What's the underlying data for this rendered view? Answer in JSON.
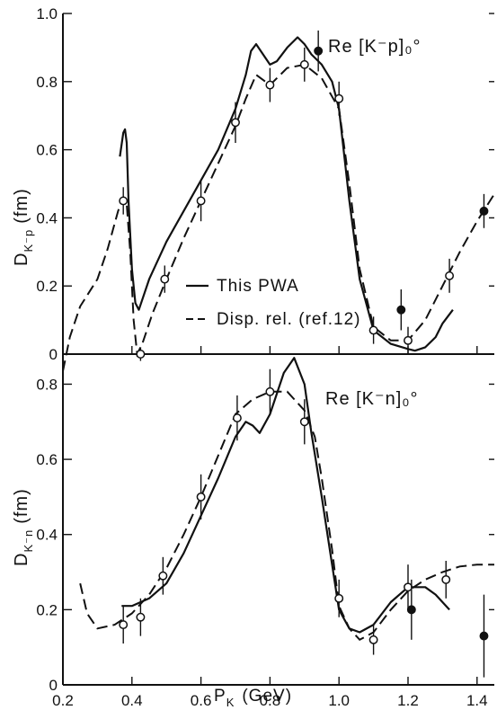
{
  "chart_data": [
    {
      "type": "line",
      "panel_label": "Re [K⁻p]₀°",
      "ylabel": "D_{K⁻p} (fm)",
      "ylabel_main": "D",
      "ylabel_sub": "K⁻p",
      "ylabel_unit": "(fm)",
      "ylim": [
        0,
        1.0
      ],
      "xlim": [
        0.2,
        1.45
      ],
      "yticks": [
        "0",
        "0.2",
        "0.4",
        "0.6",
        "0.8",
        "1.0"
      ],
      "ytick_values": [
        0,
        0.2,
        0.4,
        0.6,
        0.8,
        1.0
      ],
      "legend": {
        "placement": "center-right",
        "solid": "This PWA",
        "dashed": "Disp. rel. (ref.12)"
      },
      "series": [
        {
          "name": "This PWA",
          "style": "solid",
          "x": [
            0.365,
            0.375,
            0.38,
            0.385,
            0.39,
            0.4,
            0.41,
            0.42,
            0.45,
            0.5,
            0.55,
            0.6,
            0.65,
            0.7,
            0.73,
            0.745,
            0.76,
            0.78,
            0.8,
            0.82,
            0.85,
            0.88,
            0.9,
            0.92,
            0.95,
            0.98,
            1.0,
            1.03,
            1.06,
            1.1,
            1.15,
            1.2,
            1.22,
            1.25,
            1.28,
            1.3,
            1.33
          ],
          "y": [
            0.58,
            0.65,
            0.66,
            0.62,
            0.45,
            0.25,
            0.15,
            0.13,
            0.22,
            0.33,
            0.42,
            0.51,
            0.6,
            0.72,
            0.82,
            0.89,
            0.91,
            0.88,
            0.85,
            0.86,
            0.9,
            0.93,
            0.91,
            0.88,
            0.85,
            0.8,
            0.72,
            0.45,
            0.22,
            0.07,
            0.03,
            0.015,
            0.01,
            0.02,
            0.05,
            0.09,
            0.13
          ]
        },
        {
          "name": "Disp. rel. (ref.12)",
          "style": "dashed",
          "x": [
            0.2,
            0.22,
            0.25,
            0.3,
            0.33,
            0.36,
            0.375,
            0.385,
            0.395,
            0.405,
            0.415,
            0.43,
            0.46,
            0.5,
            0.55,
            0.6,
            0.65,
            0.7,
            0.73,
            0.76,
            0.8,
            0.85,
            0.9,
            0.95,
            1.0,
            1.03,
            1.06,
            1.1,
            1.15,
            1.2,
            1.25,
            1.3,
            1.35,
            1.4,
            1.45
          ],
          "y": [
            -0.05,
            0.05,
            0.14,
            0.22,
            0.31,
            0.42,
            0.46,
            0.44,
            0.3,
            0.1,
            0.0,
            0.03,
            0.12,
            0.22,
            0.34,
            0.45,
            0.56,
            0.67,
            0.75,
            0.82,
            0.79,
            0.84,
            0.85,
            0.81,
            0.72,
            0.5,
            0.25,
            0.08,
            0.04,
            0.04,
            0.1,
            0.2,
            0.3,
            0.39,
            0.47
          ]
        }
      ],
      "points": [
        {
          "x": 0.375,
          "y": 0.45,
          "err": 0.04,
          "filled": false
        },
        {
          "x": 0.425,
          "y": 0.0,
          "err": 0.02,
          "filled": false
        },
        {
          "x": 0.495,
          "y": 0.22,
          "err": 0.04,
          "filled": false
        },
        {
          "x": 0.6,
          "y": 0.45,
          "err": 0.06,
          "filled": false
        },
        {
          "x": 0.7,
          "y": 0.68,
          "err": 0.06,
          "filled": false
        },
        {
          "x": 0.8,
          "y": 0.79,
          "err": 0.05,
          "filled": false
        },
        {
          "x": 0.9,
          "y": 0.85,
          "err": 0.05,
          "filled": false
        },
        {
          "x": 0.94,
          "y": 0.89,
          "err": 0.06,
          "filled": true
        },
        {
          "x": 1.0,
          "y": 0.75,
          "err": 0.05,
          "filled": false
        },
        {
          "x": 1.1,
          "y": 0.07,
          "err": 0.04,
          "filled": false
        },
        {
          "x": 1.18,
          "y": 0.13,
          "err": 0.06,
          "filled": true
        },
        {
          "x": 1.2,
          "y": 0.04,
          "err": 0.04,
          "filled": false
        },
        {
          "x": 1.32,
          "y": 0.23,
          "err": 0.05,
          "filled": false
        },
        {
          "x": 1.42,
          "y": 0.42,
          "err": 0.05,
          "filled": true
        }
      ]
    },
    {
      "type": "line",
      "panel_label": "Re [K⁻n]₀°",
      "ylabel": "D_{K⁻n} (fm)",
      "ylabel_main": "D",
      "ylabel_sub": "K⁻n",
      "ylabel_unit": "(fm)",
      "xlabel": "P_K (GeV)",
      "xlabel_main": "P",
      "xlabel_sub": "K",
      "xlabel_unit": "(GeV)",
      "ylim": [
        0,
        0.88
      ],
      "xlim": [
        0.2,
        1.45
      ],
      "xticks": [
        "0.2",
        "0.4",
        "0.6",
        "0.8",
        "1.0",
        "1.2",
        "1.4"
      ],
      "xtick_values": [
        0.2,
        0.4,
        0.6,
        0.8,
        1.0,
        1.2,
        1.4
      ],
      "yticks": [
        "0",
        "0.2",
        "0.4",
        "0.6",
        "0.8"
      ],
      "ytick_values": [
        0,
        0.2,
        0.4,
        0.6,
        0.8
      ],
      "series": [
        {
          "name": "This PWA",
          "style": "solid",
          "x": [
            0.37,
            0.4,
            0.45,
            0.5,
            0.55,
            0.6,
            0.65,
            0.7,
            0.73,
            0.75,
            0.77,
            0.8,
            0.84,
            0.87,
            0.9,
            0.92,
            0.95,
            0.98,
            1.0,
            1.03,
            1.06,
            1.1,
            1.15,
            1.2,
            1.25,
            1.28,
            1.32
          ],
          "y": [
            0.21,
            0.21,
            0.23,
            0.27,
            0.35,
            0.45,
            0.55,
            0.66,
            0.7,
            0.69,
            0.67,
            0.72,
            0.83,
            0.87,
            0.8,
            0.67,
            0.5,
            0.32,
            0.2,
            0.15,
            0.14,
            0.16,
            0.22,
            0.26,
            0.26,
            0.24,
            0.2
          ]
        },
        {
          "name": "Disp. rel. (ref.12)",
          "style": "dashed",
          "x": [
            0.25,
            0.27,
            0.3,
            0.35,
            0.4,
            0.45,
            0.5,
            0.55,
            0.6,
            0.65,
            0.7,
            0.75,
            0.8,
            0.85,
            0.9,
            0.93,
            0.95,
            0.98,
            1.0,
            1.03,
            1.06,
            1.1,
            1.15,
            1.2,
            1.25,
            1.3,
            1.35,
            1.4,
            1.45
          ],
          "y": [
            0.27,
            0.19,
            0.15,
            0.16,
            0.19,
            0.24,
            0.31,
            0.4,
            0.5,
            0.61,
            0.72,
            0.76,
            0.78,
            0.78,
            0.73,
            0.66,
            0.55,
            0.36,
            0.21,
            0.15,
            0.12,
            0.14,
            0.2,
            0.25,
            0.28,
            0.3,
            0.315,
            0.32,
            0.32
          ]
        }
      ],
      "points": [
        {
          "x": 0.375,
          "y": 0.16,
          "err": 0.05,
          "filled": false
        },
        {
          "x": 0.425,
          "y": 0.18,
          "err": 0.05,
          "filled": false
        },
        {
          "x": 0.49,
          "y": 0.29,
          "err": 0.05,
          "filled": false
        },
        {
          "x": 0.6,
          "y": 0.5,
          "err": 0.06,
          "filled": false
        },
        {
          "x": 0.705,
          "y": 0.71,
          "err": 0.06,
          "filled": false
        },
        {
          "x": 0.8,
          "y": 0.78,
          "err": 0.06,
          "filled": false
        },
        {
          "x": 0.9,
          "y": 0.7,
          "err": 0.06,
          "filled": false
        },
        {
          "x": 1.0,
          "y": 0.23,
          "err": 0.05,
          "filled": false
        },
        {
          "x": 1.1,
          "y": 0.12,
          "err": 0.04,
          "filled": false
        },
        {
          "x": 1.2,
          "y": 0.26,
          "err": 0.06,
          "filled": false
        },
        {
          "x": 1.21,
          "y": 0.2,
          "err": 0.08,
          "filled": true
        },
        {
          "x": 1.31,
          "y": 0.28,
          "err": 0.05,
          "filled": false
        },
        {
          "x": 1.42,
          "y": 0.13,
          "err": 0.11,
          "filled": true
        }
      ]
    }
  ]
}
